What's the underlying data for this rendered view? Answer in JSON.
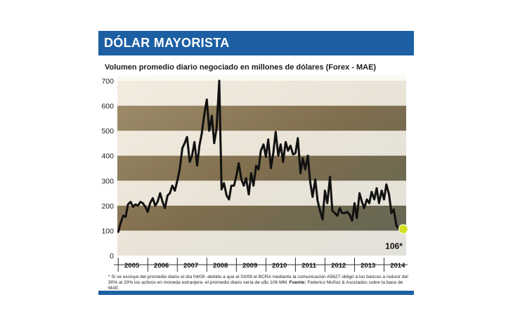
{
  "header": {
    "title": "DÓLAR MAYORISTA",
    "subtitle": "Volumen promedio diario negociado en millones de dólares (Forex - MAE)"
  },
  "footnote": {
    "text": "* Si se excluye del promedio diario el día 04/09 -debido a que el 03/09 el BCRA mediante la comunicación A5627 obligó a los bancos a reducir del 30% al 20% los activos en moneda extranjera- el promedio diario sería de u$s 106 MM.",
    "source_label": "Fuente:",
    "source": "Federico Muñoz & Asociados sobre la base de MAE."
  },
  "colors": {
    "header": "#1c5fa3",
    "line": "#111111",
    "marker": "#d4e021",
    "band": "#3a3022"
  },
  "chart_data": {
    "type": "line",
    "title": "Volumen promedio diario negociado en millones de dólares (Forex - MAE)",
    "xlabel": "",
    "ylabel": "",
    "ylim": [
      0,
      700
    ],
    "yticks": [
      0,
      100,
      200,
      300,
      400,
      500,
      600,
      700
    ],
    "year_labels": [
      "2005",
      "2006",
      "2007",
      "2008",
      "2009",
      "2010",
      "2011",
      "2012",
      "2013",
      "2014"
    ],
    "grid": "alternating horizontal bands",
    "annotation": "106*",
    "series": [
      {
        "name": "",
        "x": [
          2005.0,
          2005.08,
          2005.17,
          2005.25,
          2005.33,
          2005.42,
          2005.5,
          2005.58,
          2005.67,
          2005.75,
          2005.83,
          2005.92,
          2006.0,
          2006.08,
          2006.17,
          2006.25,
          2006.33,
          2006.42,
          2006.5,
          2006.58,
          2006.67,
          2006.75,
          2006.83,
          2006.92,
          2007.0,
          2007.08,
          2007.17,
          2007.25,
          2007.33,
          2007.42,
          2007.5,
          2007.58,
          2007.67,
          2007.75,
          2007.83,
          2007.92,
          2008.0,
          2008.08,
          2008.17,
          2008.25,
          2008.33,
          2008.42,
          2008.5,
          2008.58,
          2008.67,
          2008.75,
          2008.83,
          2008.92,
          2009.0,
          2009.08,
          2009.17,
          2009.25,
          2009.33,
          2009.42,
          2009.5,
          2009.58,
          2009.67,
          2009.75,
          2009.83,
          2009.92,
          2010.0,
          2010.08,
          2010.17,
          2010.25,
          2010.33,
          2010.42,
          2010.5,
          2010.58,
          2010.67,
          2010.75,
          2010.83,
          2010.92,
          2011.0,
          2011.08,
          2011.17,
          2011.25,
          2011.33,
          2011.42,
          2011.5,
          2011.58,
          2011.67,
          2011.75,
          2011.83,
          2011.92,
          2012.0,
          2012.08,
          2012.17,
          2012.25,
          2012.33,
          2012.42,
          2012.5,
          2012.58,
          2012.67,
          2012.75,
          2012.83,
          2012.92,
          2013.0,
          2013.08,
          2013.17,
          2013.25,
          2013.33,
          2013.42,
          2013.5,
          2013.58,
          2013.67,
          2013.75,
          2013.83,
          2013.92,
          2014.0,
          2014.08,
          2014.17,
          2014.25,
          2014.33,
          2014.42,
          2014.5,
          2014.58
        ],
        "values": [
          95,
          130,
          160,
          155,
          205,
          215,
          195,
          205,
          200,
          215,
          210,
          195,
          175,
          210,
          230,
          200,
          215,
          250,
          215,
          190,
          240,
          250,
          280,
          260,
          300,
          345,
          430,
          450,
          475,
          375,
          400,
          455,
          360,
          440,
          490,
          570,
          625,
          500,
          560,
          450,
          510,
          700,
          265,
          290,
          240,
          225,
          280,
          280,
          320,
          370,
          305,
          280,
          310,
          245,
          330,
          280,
          360,
          345,
          420,
          445,
          395,
          465,
          350,
          410,
          495,
          400,
          445,
          375,
          455,
          420,
          440,
          405,
          410,
          470,
          330,
          390,
          345,
          400,
          295,
          235,
          305,
          220,
          180,
          145,
          260,
          210,
          315,
          180,
          170,
          160,
          190,
          170,
          170,
          175,
          165,
          140,
          210,
          150,
          250,
          215,
          190,
          225,
          210,
          255,
          225,
          270,
          210,
          260,
          225,
          285,
          245,
          170,
          185,
          120,
          106,
          106
        ]
      }
    ]
  }
}
